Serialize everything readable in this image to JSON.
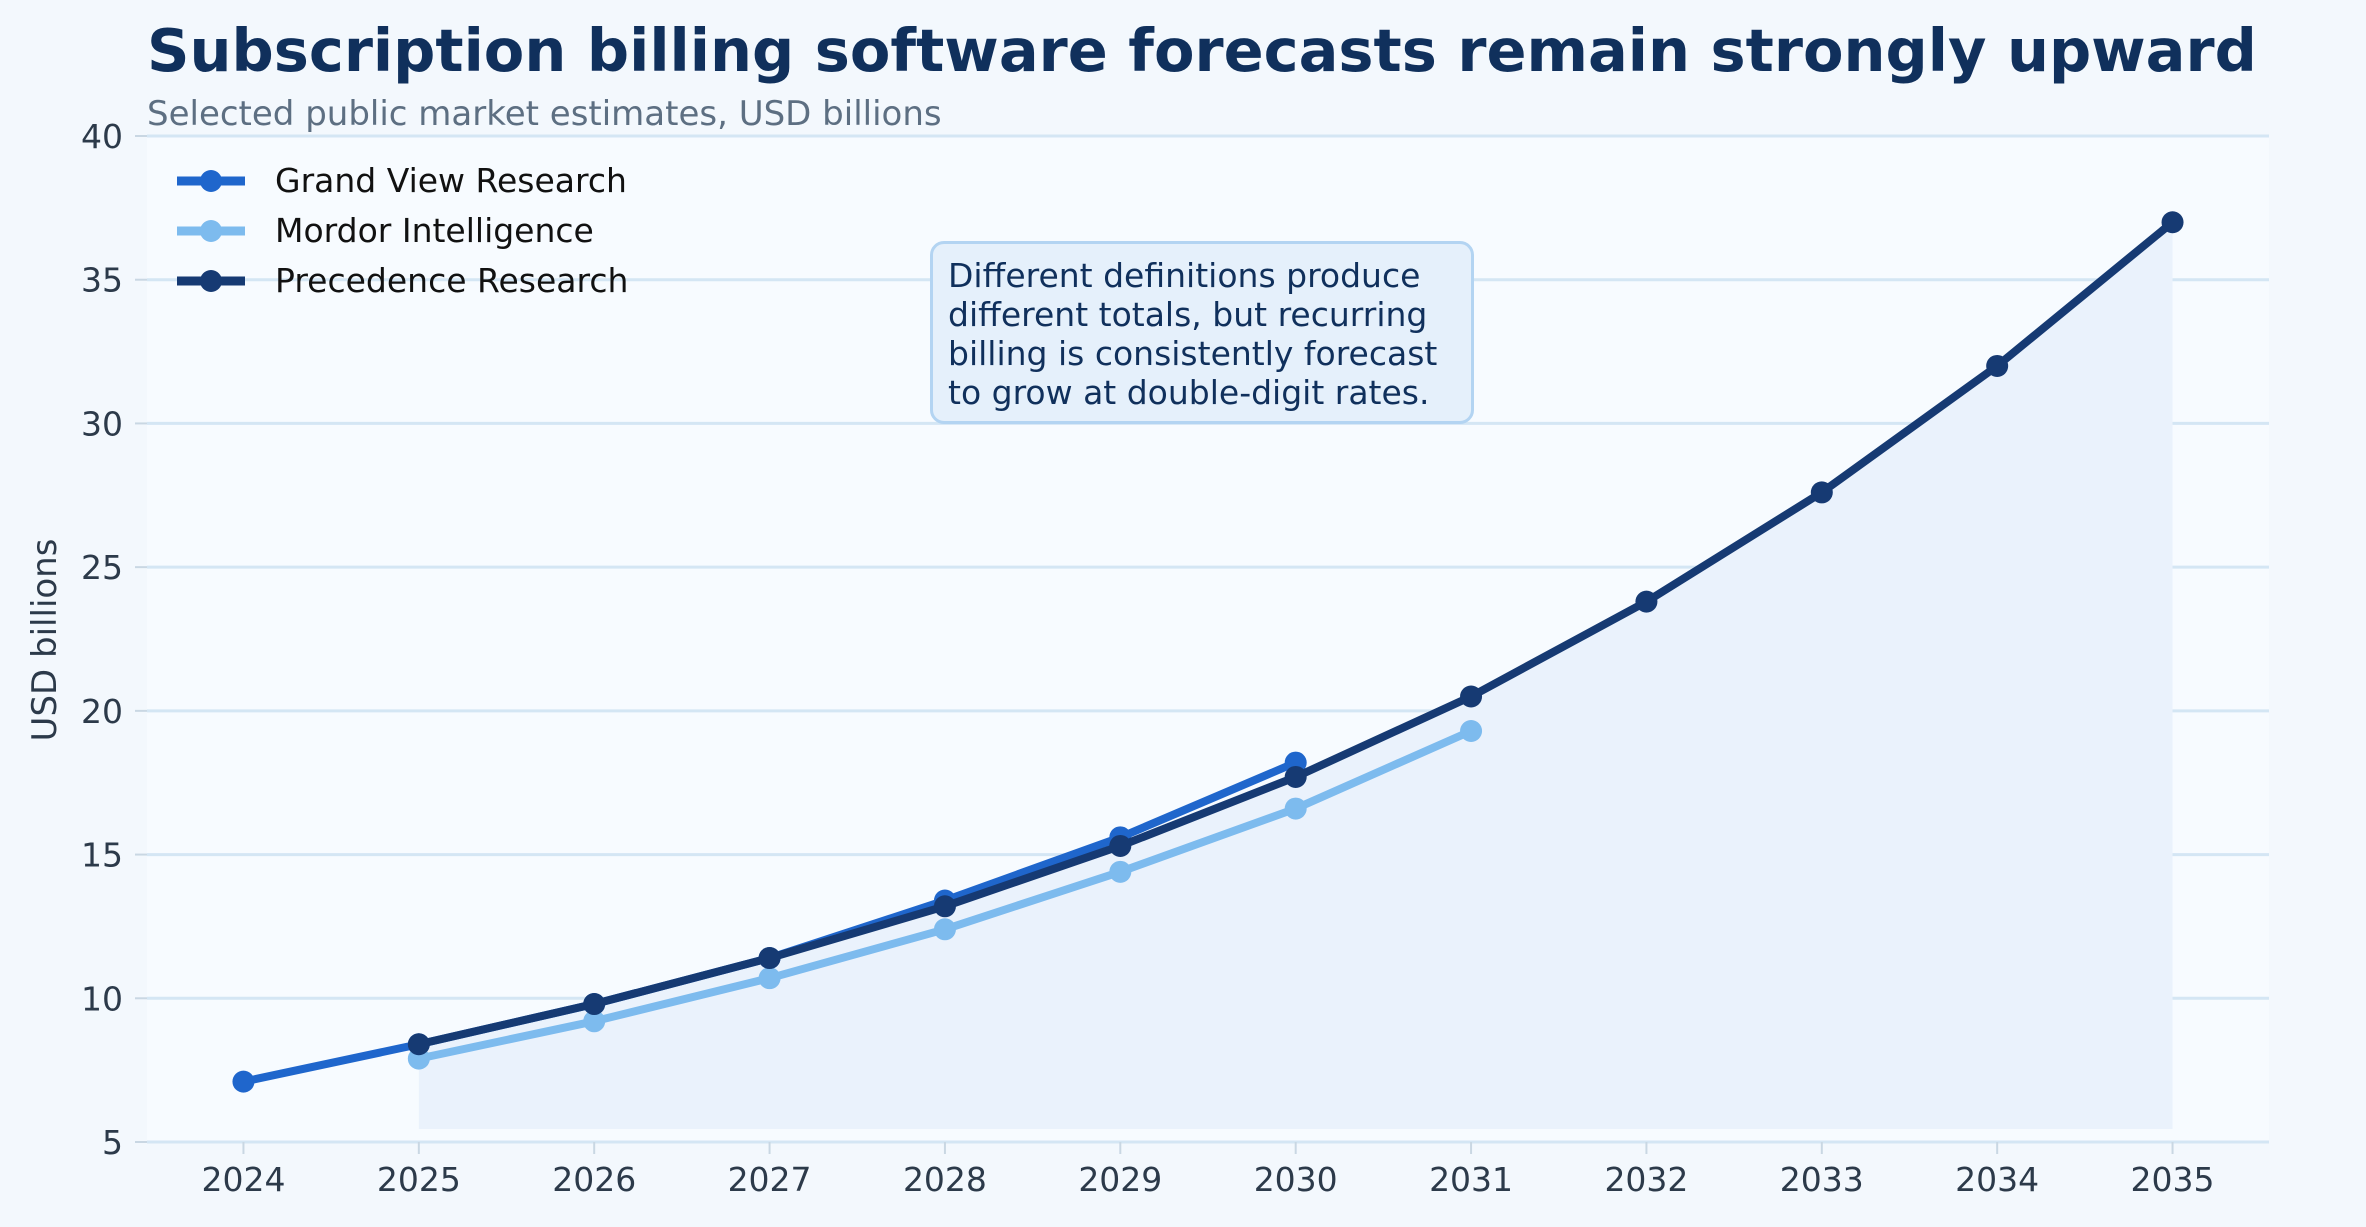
{
  "chart_data": {
    "type": "line",
    "title": "Subscription billing software forecasts remain strongly upward",
    "subtitle": "Selected public market estimates, USD billions",
    "ylabel": "USD billions",
    "xlabel": "",
    "ylim": [
      5,
      40
    ],
    "xlim": [
      2023.45,
      2035.55
    ],
    "yticks": [
      5,
      10,
      15,
      20,
      25,
      30,
      35,
      40
    ],
    "xticks": [
      2024,
      2025,
      2026,
      2027,
      2028,
      2029,
      2030,
      2031,
      2032,
      2033,
      2034,
      2035
    ],
    "grid": "horizontal",
    "legend_position": "top-left",
    "shaded_series": "Precedence Research",
    "series": [
      {
        "name": "Grand View Research",
        "color": "#1f66cc",
        "x": [
          2024,
          2025,
          2026,
          2027,
          2028,
          2029,
          2030
        ],
        "values": [
          7.1,
          8.4,
          9.8,
          11.4,
          13.4,
          15.6,
          18.2
        ]
      },
      {
        "name": "Mordor Intelligence",
        "color": "#7dbbee",
        "x": [
          2025,
          2026,
          2027,
          2028,
          2029,
          2030,
          2031
        ],
        "values": [
          7.9,
          9.2,
          10.7,
          12.4,
          14.4,
          16.6,
          19.3
        ]
      },
      {
        "name": "Precedence Research",
        "color": "#163a73",
        "x": [
          2025,
          2026,
          2027,
          2028,
          2029,
          2030,
          2031,
          2032,
          2033,
          2034,
          2035
        ],
        "values": [
          8.4,
          9.8,
          11.4,
          13.2,
          15.3,
          17.7,
          20.5,
          23.8,
          27.6,
          32.0,
          37.0
        ]
      }
    ],
    "annotation": [
      "Different definitions produce",
      "different totals, but recurring",
      "billing is consistently forecast",
      "to grow at double-digit rates."
    ]
  },
  "colors": {
    "background": "#f3f8fd",
    "plot_background": "#f7fbff",
    "grid": "#d4e6f4",
    "fill": "#eaf2fc",
    "title": "#10305c"
  }
}
